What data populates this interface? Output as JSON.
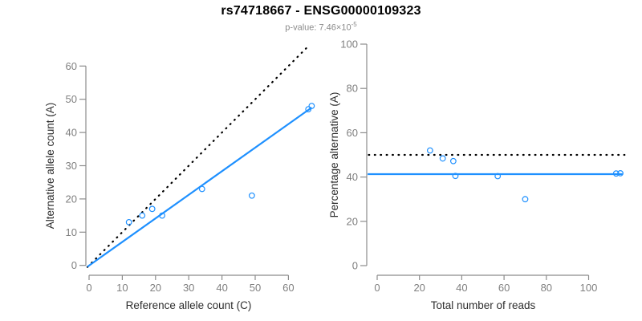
{
  "header": {
    "title": "rs74718667 - ENSG00000109323",
    "pvalue_label": "p-value: ",
    "pvalue_base": "7.46×10",
    "pvalue_exponent": "-5"
  },
  "colors": {
    "accent": "#1E90FF",
    "identity": "#000000",
    "axis": "#8c8c8c",
    "tick_label": "#7f7f7f",
    "axis_title": "#2e2e2e",
    "subtitle": "#8a8a8a"
  },
  "chart_data": [
    {
      "id": "allele-count-scatter",
      "type": "scatter",
      "title": "",
      "xlabel": "Reference allele count (C)",
      "ylabel": "Alternative allele count (A)",
      "xlim": [
        0,
        67
      ],
      "ylim": [
        0,
        66
      ],
      "grid": false,
      "xticks": [
        0,
        10,
        20,
        30,
        40,
        50,
        60
      ],
      "yticks": [
        0,
        10,
        20,
        30,
        40,
        50,
        60
      ],
      "points": [
        [
          12,
          13
        ],
        [
          16,
          15
        ],
        [
          19,
          17
        ],
        [
          22,
          15
        ],
        [
          34,
          23
        ],
        [
          49,
          21
        ],
        [
          66,
          47
        ],
        [
          67,
          48
        ]
      ],
      "lines": [
        {
          "name": "identity-line",
          "style": "dotted",
          "color": "#000000",
          "from": [
            -0.5,
            -0.5
          ],
          "to": [
            65.5,
            65.5
          ]
        },
        {
          "name": "fit-line",
          "style": "solid",
          "color": "#1E90FF",
          "from": [
            -0.5,
            -0.4
          ],
          "to": [
            67,
            47.5
          ]
        }
      ]
    },
    {
      "id": "percentage-vs-reads-scatter",
      "type": "scatter",
      "title": "",
      "xlabel": "Total number of reads",
      "ylabel": "Percentage alternative (A)",
      "xlim": [
        0,
        117
      ],
      "ylim": [
        0,
        100
      ],
      "grid": false,
      "xticks": [
        0,
        20,
        40,
        60,
        80,
        100
      ],
      "yticks": [
        0,
        20,
        40,
        60,
        80,
        100
      ],
      "points": [
        [
          25,
          52
        ],
        [
          31,
          48.4
        ],
        [
          36,
          47.2
        ],
        [
          37,
          40.5
        ],
        [
          57,
          40.4
        ],
        [
          70,
          30
        ],
        [
          113,
          41.6
        ],
        [
          115,
          41.7
        ]
      ],
      "lines": [
        {
          "name": "expected-50pct-line",
          "style": "dotted",
          "color": "#000000",
          "from": [
            -4,
            50
          ],
          "to": [
            117,
            50
          ]
        },
        {
          "name": "fit-line",
          "style": "solid",
          "color": "#1E90FF",
          "from": [
            -4.5,
            41.3
          ],
          "to": [
            116,
            41.3
          ]
        }
      ]
    }
  ]
}
